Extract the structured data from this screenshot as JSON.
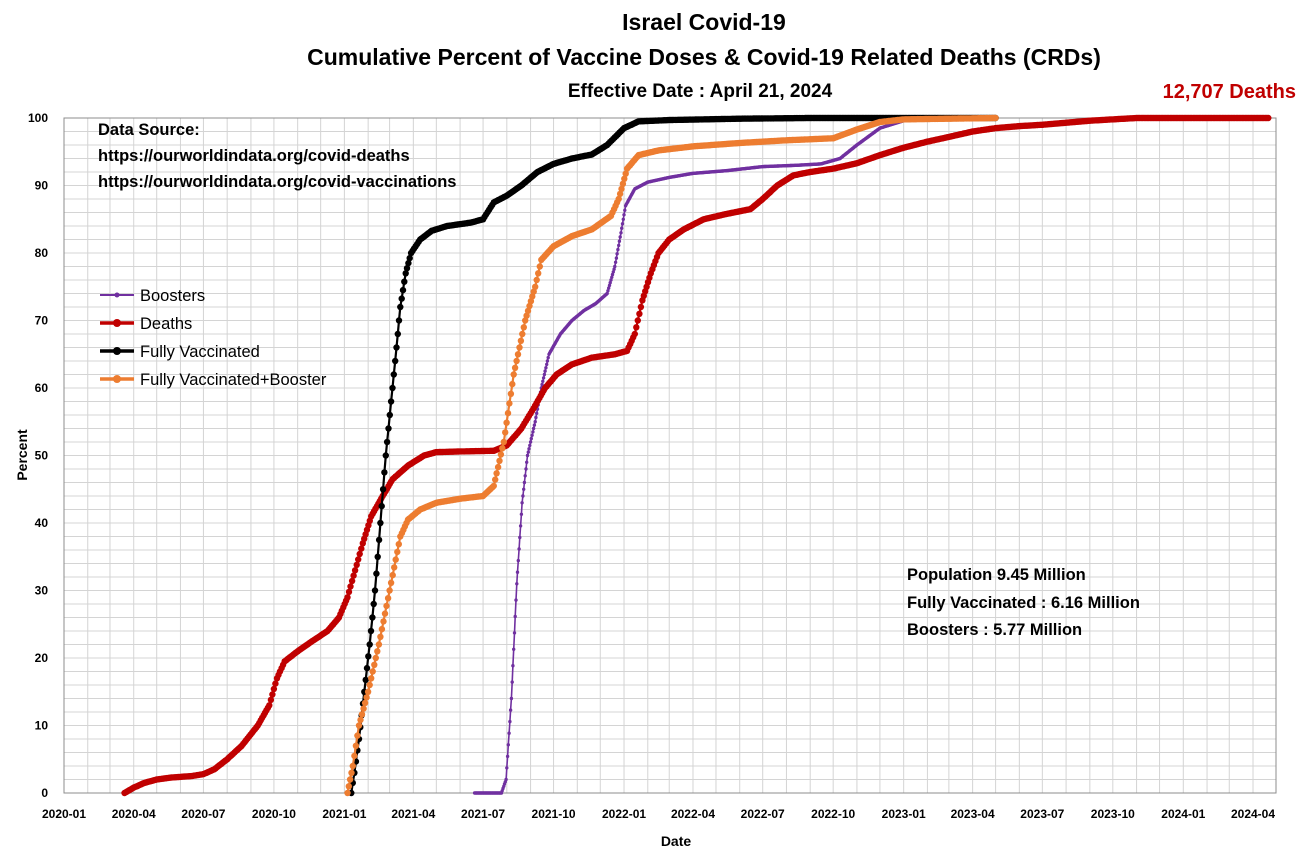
{
  "chart_data": {
    "type": "line",
    "title": "Israel Covid-19",
    "subtitle": "Cumulative Percent of Vaccine Doses & Covid-19 Related Deaths (CRDs)",
    "effective_date": "Effective Date : April 21, 2024",
    "deaths_label": "12,707 Deaths",
    "xlabel": "Date",
    "ylabel": "Percent",
    "ylim": [
      0,
      100
    ],
    "xlim": [
      "2020-01",
      "2024-05"
    ],
    "grid": true,
    "legend_position": "left",
    "y_ticks": [
      "0",
      "10",
      "20",
      "30",
      "40",
      "50",
      "60",
      "70",
      "80",
      "90",
      "100"
    ],
    "x_ticks": [
      "2020-01",
      "2020-04",
      "2020-07",
      "2020-10",
      "2021-01",
      "2021-04",
      "2021-07",
      "2021-10",
      "2022-01",
      "2022-04",
      "2022-07",
      "2022-10",
      "2023-01",
      "2023-04",
      "2023-07",
      "2023-10",
      "2024-01",
      "2024-04"
    ],
    "source_lines": [
      "Data Source:",
      "https://ourworldindata.org/covid-deaths",
      "https://ourworldindata.org/covid-vaccinations"
    ],
    "notes": [
      "Population  9.45 Million",
      "Fully Vaccinated : 6.16 Million",
      "Boosters : 5.77 Million"
    ],
    "series": [
      {
        "name": "Boosters",
        "color": "#7030a0",
        "points": [
          [
            "2021-06-20",
            0
          ],
          [
            "2021-07-25",
            0
          ],
          [
            "2021-07-31",
            2
          ],
          [
            "2021-08-07",
            14
          ],
          [
            "2021-08-14",
            31
          ],
          [
            "2021-08-21",
            43
          ],
          [
            "2021-08-28",
            50
          ],
          [
            "2021-09-07",
            55
          ],
          [
            "2021-09-15",
            60
          ],
          [
            "2021-09-25",
            65
          ],
          [
            "2021-10-10",
            68
          ],
          [
            "2021-10-25",
            70
          ],
          [
            "2021-11-10",
            71.5
          ],
          [
            "2021-11-25",
            72.5
          ],
          [
            "2021-12-10",
            74
          ],
          [
            "2021-12-20",
            78
          ],
          [
            "2021-12-28",
            83
          ],
          [
            "2022-01-03",
            87
          ],
          [
            "2022-01-15",
            89.5
          ],
          [
            "2022-02-01",
            90.5
          ],
          [
            "2022-03-01",
            91.2
          ],
          [
            "2022-04-01",
            91.8
          ],
          [
            "2022-05-15",
            92.2
          ],
          [
            "2022-07-01",
            92.8
          ],
          [
            "2022-08-15",
            93
          ],
          [
            "2022-09-15",
            93.2
          ],
          [
            "2022-10-10",
            94
          ],
          [
            "2022-11-01",
            96
          ],
          [
            "2022-12-01",
            98.5
          ],
          [
            "2023-01-01",
            99.6
          ],
          [
            "2023-02-01",
            100
          ],
          [
            "2023-05-01",
            100
          ]
        ]
      },
      {
        "name": "Deaths",
        "color": "#c00000",
        "points": [
          [
            "2020-03-20",
            0
          ],
          [
            "2020-04-01",
            0.8
          ],
          [
            "2020-04-15",
            1.5
          ],
          [
            "2020-05-01",
            2
          ],
          [
            "2020-05-20",
            2.3
          ],
          [
            "2020-06-15",
            2.5
          ],
          [
            "2020-07-01",
            2.8
          ],
          [
            "2020-07-15",
            3.5
          ],
          [
            "2020-08-01",
            5
          ],
          [
            "2020-08-20",
            7
          ],
          [
            "2020-09-10",
            10
          ],
          [
            "2020-09-25",
            13
          ],
          [
            "2020-10-05",
            17
          ],
          [
            "2020-10-15",
            19.5
          ],
          [
            "2020-11-01",
            21
          ],
          [
            "2020-11-20",
            22.5
          ],
          [
            "2020-12-10",
            24
          ],
          [
            "2020-12-25",
            26
          ],
          [
            "2021-01-05",
            29
          ],
          [
            "2021-01-15",
            33
          ],
          [
            "2021-01-25",
            37
          ],
          [
            "2021-02-05",
            41
          ],
          [
            "2021-02-20",
            44
          ],
          [
            "2021-03-05",
            46.5
          ],
          [
            "2021-03-25",
            48.5
          ],
          [
            "2021-04-15",
            50
          ],
          [
            "2021-05-01",
            50.5
          ],
          [
            "2021-06-01",
            50.6
          ],
          [
            "2021-07-15",
            50.7
          ],
          [
            "2021-08-01",
            51.5
          ],
          [
            "2021-08-20",
            54
          ],
          [
            "2021-09-05",
            57
          ],
          [
            "2021-09-20",
            60
          ],
          [
            "2021-10-05",
            62
          ],
          [
            "2021-10-25",
            63.5
          ],
          [
            "2021-11-20",
            64.5
          ],
          [
            "2021-12-20",
            65
          ],
          [
            "2022-01-05",
            65.5
          ],
          [
            "2022-01-15",
            68
          ],
          [
            "2022-01-25",
            73
          ],
          [
            "2022-02-05",
            77
          ],
          [
            "2022-02-15",
            80
          ],
          [
            "2022-03-01",
            82
          ],
          [
            "2022-03-20",
            83.5
          ],
          [
            "2022-04-15",
            85
          ],
          [
            "2022-05-15",
            85.8
          ],
          [
            "2022-06-15",
            86.5
          ],
          [
            "2022-07-01",
            88
          ],
          [
            "2022-07-20",
            90
          ],
          [
            "2022-08-10",
            91.5
          ],
          [
            "2022-09-01",
            92
          ],
          [
            "2022-10-01",
            92.5
          ],
          [
            "2022-11-01",
            93.3
          ],
          [
            "2022-12-01",
            94.5
          ],
          [
            "2023-01-01",
            95.6
          ],
          [
            "2023-02-01",
            96.5
          ],
          [
            "2023-03-01",
            97.2
          ],
          [
            "2023-04-01",
            98
          ],
          [
            "2023-05-01",
            98.5
          ],
          [
            "2023-06-01",
            98.8
          ],
          [
            "2023-07-01",
            99
          ],
          [
            "2023-08-01",
            99.3
          ],
          [
            "2023-09-01",
            99.6
          ],
          [
            "2023-10-01",
            99.8
          ],
          [
            "2023-11-01",
            100
          ],
          [
            "2024-04-21",
            100
          ]
        ]
      },
      {
        "name": "Fully Vaccinated",
        "color": "#000000",
        "points": [
          [
            "2021-01-10",
            0
          ],
          [
            "2021-01-14",
            3
          ],
          [
            "2021-01-20",
            8
          ],
          [
            "2021-01-27",
            15
          ],
          [
            "2021-02-03",
            22
          ],
          [
            "2021-02-10",
            30
          ],
          [
            "2021-02-17",
            40
          ],
          [
            "2021-02-24",
            50
          ],
          [
            "2021-03-03",
            58
          ],
          [
            "2021-03-10",
            66
          ],
          [
            "2021-03-15",
            72
          ],
          [
            "2021-03-22",
            77
          ],
          [
            "2021-03-29",
            80
          ],
          [
            "2021-04-10",
            82
          ],
          [
            "2021-04-25",
            83.3
          ],
          [
            "2021-05-15",
            84
          ],
          [
            "2021-06-15",
            84.5
          ],
          [
            "2021-07-01",
            85
          ],
          [
            "2021-07-15",
            87.5
          ],
          [
            "2021-08-01",
            88.5
          ],
          [
            "2021-08-20",
            90
          ],
          [
            "2021-09-10",
            92
          ],
          [
            "2021-10-01",
            93.2
          ],
          [
            "2021-10-25",
            94
          ],
          [
            "2021-11-20",
            94.6
          ],
          [
            "2021-12-10",
            96
          ],
          [
            "2022-01-01",
            98.5
          ],
          [
            "2022-01-20",
            99.5
          ],
          [
            "2022-03-01",
            99.7
          ],
          [
            "2022-06-01",
            99.9
          ],
          [
            "2022-09-01",
            100
          ],
          [
            "2023-05-01",
            100
          ]
        ]
      },
      {
        "name": "Fully Vaccinated+Booster",
        "color": "#ed7d31",
        "points": [
          [
            "2021-01-05",
            0
          ],
          [
            "2021-01-12",
            4
          ],
          [
            "2021-01-20",
            10
          ],
          [
            "2021-02-01",
            15
          ],
          [
            "2021-02-15",
            22
          ],
          [
            "2021-03-01",
            30
          ],
          [
            "2021-03-15",
            38
          ],
          [
            "2021-03-25",
            40.5
          ],
          [
            "2021-04-10",
            42
          ],
          [
            "2021-05-01",
            43
          ],
          [
            "2021-06-01",
            43.6
          ],
          [
            "2021-07-01",
            44
          ],
          [
            "2021-07-15",
            45.5
          ],
          [
            "2021-07-28",
            52
          ],
          [
            "2021-08-10",
            62
          ],
          [
            "2021-08-25",
            70
          ],
          [
            "2021-09-07",
            75
          ],
          [
            "2021-09-15",
            79
          ],
          [
            "2021-10-01",
            81
          ],
          [
            "2021-10-25",
            82.5
          ],
          [
            "2021-11-20",
            83.5
          ],
          [
            "2021-12-15",
            85.5
          ],
          [
            "2021-12-25",
            88
          ],
          [
            "2022-01-05",
            92.5
          ],
          [
            "2022-01-20",
            94.5
          ],
          [
            "2022-02-15",
            95.2
          ],
          [
            "2022-04-01",
            95.8
          ],
          [
            "2022-06-01",
            96.3
          ],
          [
            "2022-08-01",
            96.7
          ],
          [
            "2022-10-01",
            97
          ],
          [
            "2022-11-01",
            98.3
          ],
          [
            "2022-12-01",
            99.4
          ],
          [
            "2023-01-01",
            99.8
          ],
          [
            "2023-05-01",
            100
          ]
        ]
      }
    ]
  }
}
